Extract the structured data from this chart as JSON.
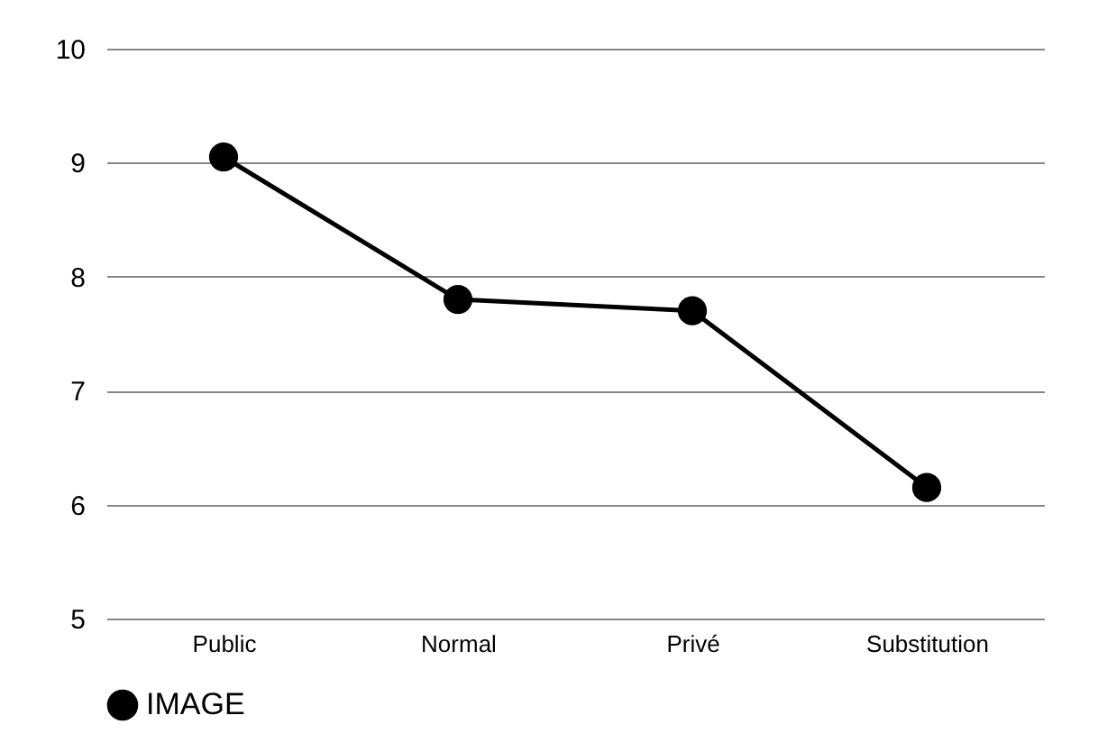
{
  "chart_data": {
    "type": "line",
    "categories": [
      "Public",
      "Normal",
      "Privé",
      "Substitution"
    ],
    "series": [
      {
        "name": "IMAGE",
        "color": "#000000",
        "values": [
          9.05,
          7.8,
          7.7,
          6.15
        ]
      }
    ],
    "ylim": [
      5,
      10
    ],
    "yticks": [
      5,
      6,
      7,
      8,
      9,
      10
    ],
    "grid": "y",
    "legend": "bottom",
    "marker": "circle",
    "line_style": "solid"
  }
}
